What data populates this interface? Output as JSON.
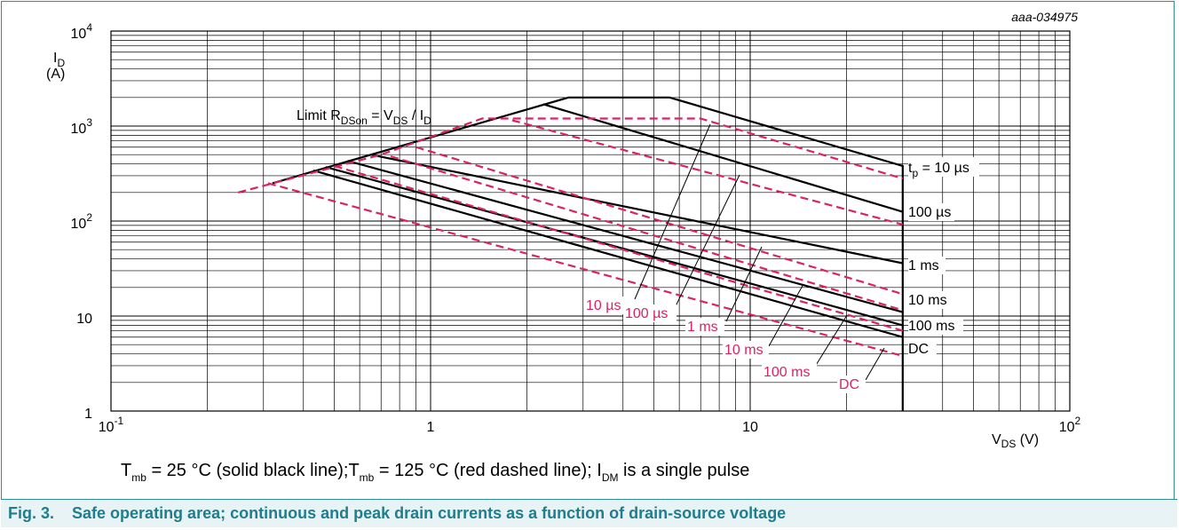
{
  "figure": {
    "code": "aaa-034975",
    "caption_number": "Fig. 3.",
    "caption_text": "Safe operating area; continuous and peak drain currents as a function of drain-source voltage",
    "conditions": {
      "t1": "T",
      "t1_sub": "mb",
      "t1_rest": " = 25 °C (solid black line);",
      "t2": "T",
      "t2_sub": "mb",
      "t2_rest": " = 125 °C (red dashed line); I",
      "t3_sub": "DM",
      "t3_rest": " is a single pulse"
    }
  },
  "colors": {
    "solid": "#000000",
    "dashed": "#d9245f",
    "accent": "#1f7d8c"
  },
  "chart_data": {
    "type": "line",
    "xscale": "log",
    "yscale": "log",
    "xlim": [
      0.1,
      100
    ],
    "ylim": [
      1,
      10000
    ],
    "grid": true,
    "x_ticks": [
      {
        "base": "10",
        "exp": "-1"
      },
      {
        "base": "1",
        "exp": ""
      },
      {
        "base": "10",
        "exp": ""
      },
      {
        "base": "10",
        "exp": "2"
      }
    ],
    "y_ticks": [
      {
        "base": "1",
        "exp": ""
      },
      {
        "base": "10",
        "exp": ""
      },
      {
        "base": "10",
        "exp": "2"
      },
      {
        "base": "10",
        "exp": "3"
      },
      {
        "base": "10",
        "exp": "4"
      }
    ],
    "xlabel": {
      "main": "V",
      "sub": "DS",
      "rest": " (V)"
    },
    "ylabel": {
      "main": "I",
      "sub": "D",
      "line2": "(A)"
    },
    "limit_label": {
      "a": "Limit R",
      "a_sub": "DSon",
      "b": " = V",
      "b_sub": "DS",
      "c": " / I",
      "c_sub": "D"
    },
    "series": [
      {
        "name": "tp = 10 µs",
        "style": "solid",
        "x": [
          0.32,
          2.7,
          5.6,
          30,
          30
        ],
        "y": [
          250,
          2000,
          2000,
          380,
          1
        ]
      },
      {
        "name": "100 µs",
        "style": "solid",
        "x": [
          2.25,
          30
        ],
        "y": [
          1700,
          125
        ]
      },
      {
        "name": "1 ms",
        "style": "solid",
        "x": [
          0.65,
          30
        ],
        "y": [
          500,
          36
        ]
      },
      {
        "name": "10 ms",
        "style": "solid",
        "x": [
          0.55,
          30
        ],
        "y": [
          430,
          11
        ]
      },
      {
        "name": "100 ms",
        "style": "solid",
        "x": [
          0.47,
          30
        ],
        "y": [
          370,
          8
        ]
      },
      {
        "name": "DC",
        "style": "solid",
        "x": [
          0.43,
          30
        ],
        "y": [
          340,
          6
        ]
      },
      {
        "name": "10 µs",
        "style": "dashed",
        "x": [
          0.25,
          0.7,
          1.45,
          7.0,
          30
        ],
        "y": [
          200,
          500,
          1200,
          1200,
          280
        ]
      },
      {
        "name": "100 µs",
        "style": "dashed",
        "x": [
          1.8,
          30
        ],
        "y": [
          1150,
          92
        ]
      },
      {
        "name": "1 ms",
        "style": "dashed",
        "x": [
          0.9,
          30
        ],
        "y": [
          600,
          17
        ]
      },
      {
        "name": "10 ms",
        "style": "dashed",
        "x": [
          0.75,
          30
        ],
        "y": [
          480,
          11.5
        ]
      },
      {
        "name": "100 ms",
        "style": "dashed",
        "x": [
          0.5,
          30
        ],
        "y": [
          380,
          7
        ]
      },
      {
        "name": "DC",
        "style": "dashed",
        "x": [
          0.31,
          30
        ],
        "y": [
          250,
          3.8
        ]
      }
    ],
    "labels_right": [
      {
        "text": "t",
        "sub": "p",
        "rest": " = 10 µs",
        "y": 360
      },
      {
        "text": "100 µs",
        "y": 120
      },
      {
        "text": "1 ms",
        "y": 34
      },
      {
        "text": "10 ms",
        "y": 17
      },
      {
        "text": "100 ms",
        "y": 8
      },
      {
        "text": "DC",
        "y": 5.2
      }
    ],
    "labels_red": [
      {
        "text": "10 µs",
        "x": 0.105,
        "y": 0.0
      },
      {
        "text": "100 µs"
      },
      {
        "text": "1 ms"
      },
      {
        "text": "10 ms"
      },
      {
        "text": "100 ms"
      },
      {
        "text": "DC"
      }
    ]
  }
}
